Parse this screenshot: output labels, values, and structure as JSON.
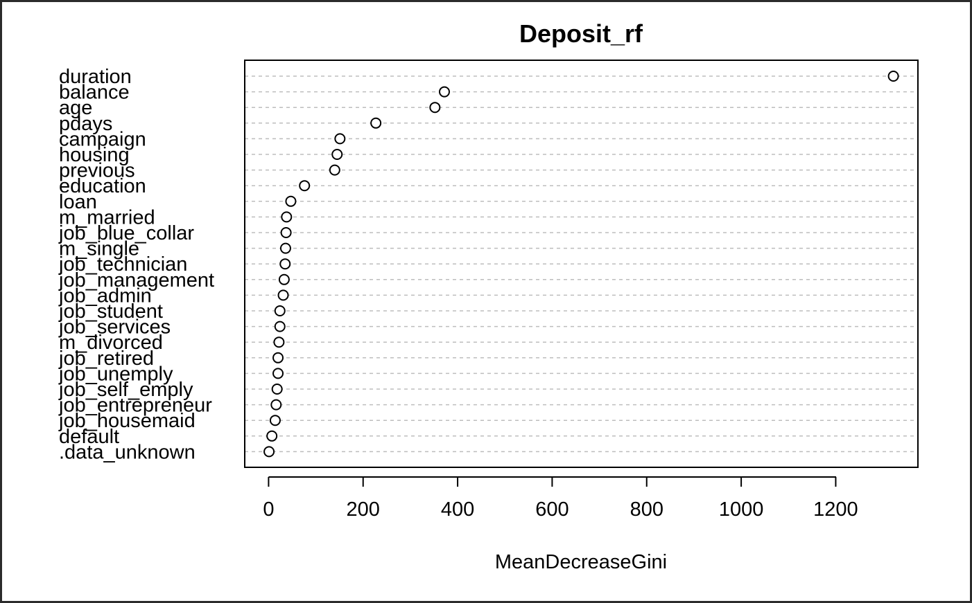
{
  "chart_data": {
    "type": "scatter",
    "subtype": "dotchart",
    "title": "Deposit_rf",
    "xlabel": "MeanDecreaseGini",
    "ylabel": "",
    "xlim": [
      -25,
      1375
    ],
    "xticks": [
      0,
      200,
      400,
      600,
      800,
      1000,
      1200
    ],
    "xtick_labels": [
      "0",
      "200",
      "400",
      "600",
      "800",
      "1000",
      "1200"
    ],
    "grid": "horizontal-dashed",
    "categories": [
      "duration",
      "balance",
      "age",
      "pdays",
      "campaign",
      "housing",
      "previous",
      "education",
      "loan",
      "m_married",
      "job_blue_collar",
      "m_single",
      "job_technician",
      "job_management",
      "job_admin",
      "job_student",
      "job_services",
      "m_divorced",
      "job_retired",
      "job_unemply",
      "job_self_emply",
      "job_entrepreneur",
      "job_housemaid",
      "default",
      ".data_unknown"
    ],
    "values": [
      1322,
      372,
      352,
      227,
      151,
      145,
      140,
      76,
      47,
      38,
      37,
      36,
      35,
      33,
      31,
      24,
      24,
      22,
      20,
      20,
      18,
      16,
      14,
      7,
      1
    ]
  }
}
